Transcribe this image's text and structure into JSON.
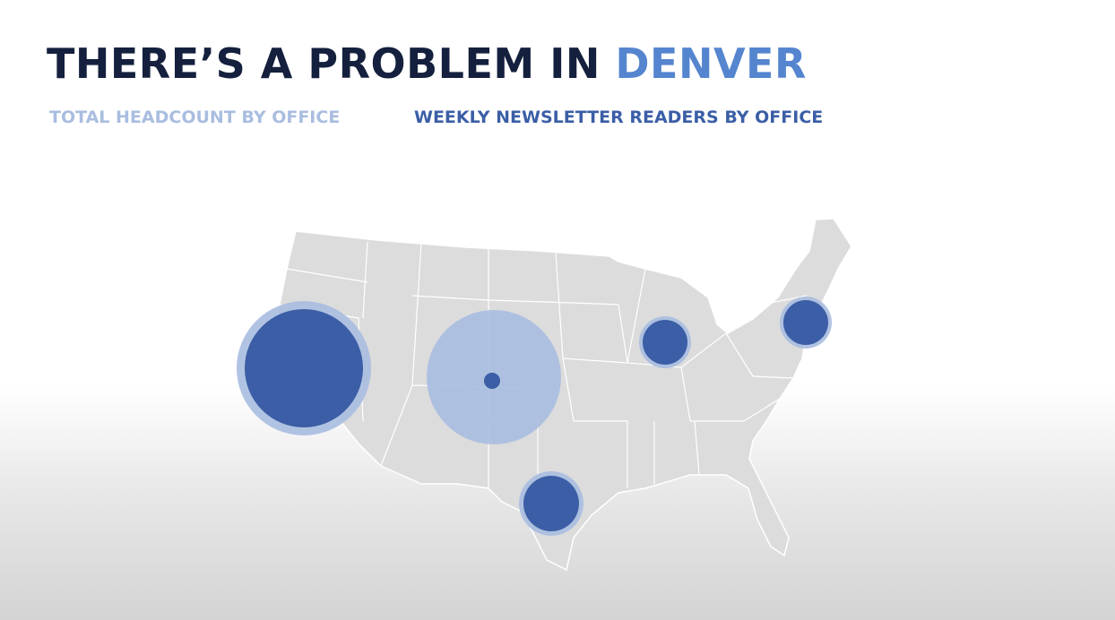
{
  "title": {
    "prefix": "THERE’S A PROBLEM IN ",
    "highlight": "DENVER"
  },
  "legend": [
    {
      "label": "TOTAL HEADCOUNT BY OFFICE",
      "color": "#a9bde0"
    },
    {
      "label": "WEEKLY NEWSLETTER READERS BY OFFICE",
      "color": "#3b5ea6"
    }
  ],
  "colors": {
    "title": "#14203d",
    "highlight": "#5585cf",
    "map_fill": "#dcdcdc",
    "headcount": "#a9bde0",
    "readers": "#3b5ea6"
  },
  "offices": [
    {
      "location": "California",
      "headcount_rel": 1.0,
      "readers_rel": 0.78
    },
    {
      "location": "Denver",
      "headcount_rel": 1.0,
      "readers_rel": 0.015
    },
    {
      "location": "Chicago",
      "headcount_rel": 0.15,
      "readers_rel": 0.11
    },
    {
      "location": "New York",
      "headcount_rel": 0.15,
      "readers_rel": 0.11
    },
    {
      "location": "Houston",
      "headcount_rel": 0.23,
      "readers_rel": 0.17
    }
  ]
}
